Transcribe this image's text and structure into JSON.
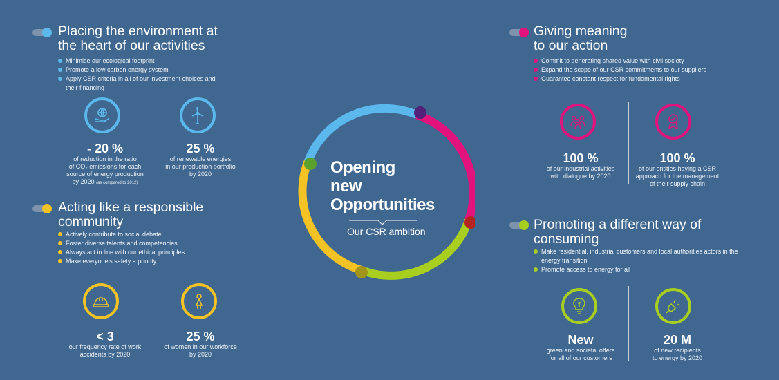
{
  "center": {
    "title_line1": "Opening",
    "title_line2": "new",
    "title_line3": "Opportunities",
    "subtitle": "Our CSR ambition"
  },
  "colors": {
    "background": "#3f6790",
    "blue": "#5bb8ec",
    "magenta": "#e2137c",
    "green": "#a8cf1f",
    "yellow": "#f3c224",
    "purple": "#52217a",
    "red": "#b5251f",
    "olive": "#a2931b",
    "darkgreen": "#5aa02c"
  },
  "environment": {
    "title_line1": "Placing the environment at",
    "title_line2": "the heart of our activities",
    "bullets": [
      "Minimise our ecological footprint",
      "Promote a low carbon energy system",
      "Apply CSR criteria in all of our investment choices and their financing"
    ],
    "stat1": {
      "icon": "globe-in-hand-icon",
      "value": "- 20 %",
      "desc_line1": "of reduction in the ratio",
      "desc_line2": "of CO₂ emissions for each",
      "desc_line3": "source of energy production",
      "desc_line4": "by 2020",
      "note": "(as compared to 2012)"
    },
    "stat2": {
      "icon": "wind-turbine-icon",
      "value": "25 %",
      "desc_line1": "of renewable energies",
      "desc_line2": "in our production portfolio",
      "desc_line3": "by 2020"
    }
  },
  "community": {
    "title_line1": "Acting like a responsible",
    "title_line2": "community",
    "bullets": [
      "Actively contribute to social debate",
      "Foster diverse talents and competencies",
      "Always act in line with our ethical principles",
      "Make everyone's safety a priority"
    ],
    "stat1": {
      "icon": "hard-hat-icon",
      "value": "< 3",
      "desc_line1": "our frequency rate of work",
      "desc_line2": "accidents by 2020"
    },
    "stat2": {
      "icon": "woman-icon",
      "value": "25 %",
      "desc_line1": "of women in our workforce",
      "desc_line2": "by 2020"
    }
  },
  "meaning": {
    "title_line1": "Giving meaning",
    "title_line2": "to our action",
    "bullets": [
      "Commit to generating shared value with civil society",
      "Expand the scope of our CSR commitments to our suppliers",
      "Guarantee constant respect for fundamental rights"
    ],
    "stat1": {
      "icon": "people-group-icon",
      "value": "100 %",
      "desc_line1": "of our industrial activities",
      "desc_line2": "with dialogue by 2020"
    },
    "stat2": {
      "icon": "award-medal-icon",
      "value": "100 %",
      "desc_line1": "of our entities having a CSR",
      "desc_line2": "approach for the management",
      "desc_line3": "of their supply chain"
    }
  },
  "consuming": {
    "title_line1": "Promoting a different way of",
    "title_line2": "consuming",
    "bullets": [
      "Make residential, industrial customers and local authorities actors in the energy transition",
      "Promote access to energy for all"
    ],
    "stat1": {
      "icon": "leaf-bulb-icon",
      "value": "New",
      "desc_line1": "green and societal offers",
      "desc_line2": "for all of our customers"
    },
    "stat2": {
      "icon": "power-plug-icon",
      "value": "20 M",
      "desc_line1": "of new recipients",
      "desc_line2": "to energy by 2020"
    }
  }
}
